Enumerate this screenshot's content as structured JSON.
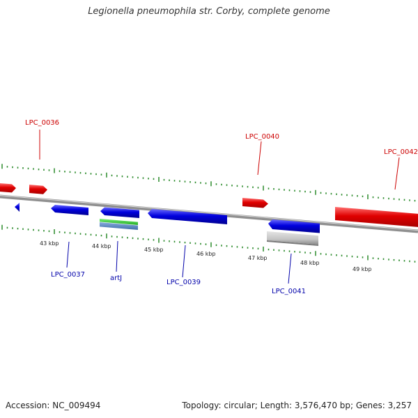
{
  "title": "Legionella pneumophila str. Corby, complete genome",
  "footer": {
    "accession": "Accession: NC_009494",
    "topology": "Topology: circular; Length: 3,576,470 bp; Genes: 3,257"
  },
  "colors": {
    "forward_gene": "#e00000",
    "reverse_gene": "#0000dd",
    "tick": "#2a8a2a",
    "backbone": "#888888",
    "forward_label": "#cc0000",
    "reverse_label": "#0000aa"
  },
  "scale_labels": [
    "43 kbp",
    "44 kbp",
    "45 kbp",
    "46 kbp",
    "47 kbp",
    "48 kbp",
    "49 kbp"
  ],
  "forward_labels": [
    "LPC_0036",
    "LPC_0040",
    "LPC_0042"
  ],
  "reverse_labels": [
    "LPC_0037",
    "artJ",
    "LPC_0039",
    "LPC_0041"
  ]
}
